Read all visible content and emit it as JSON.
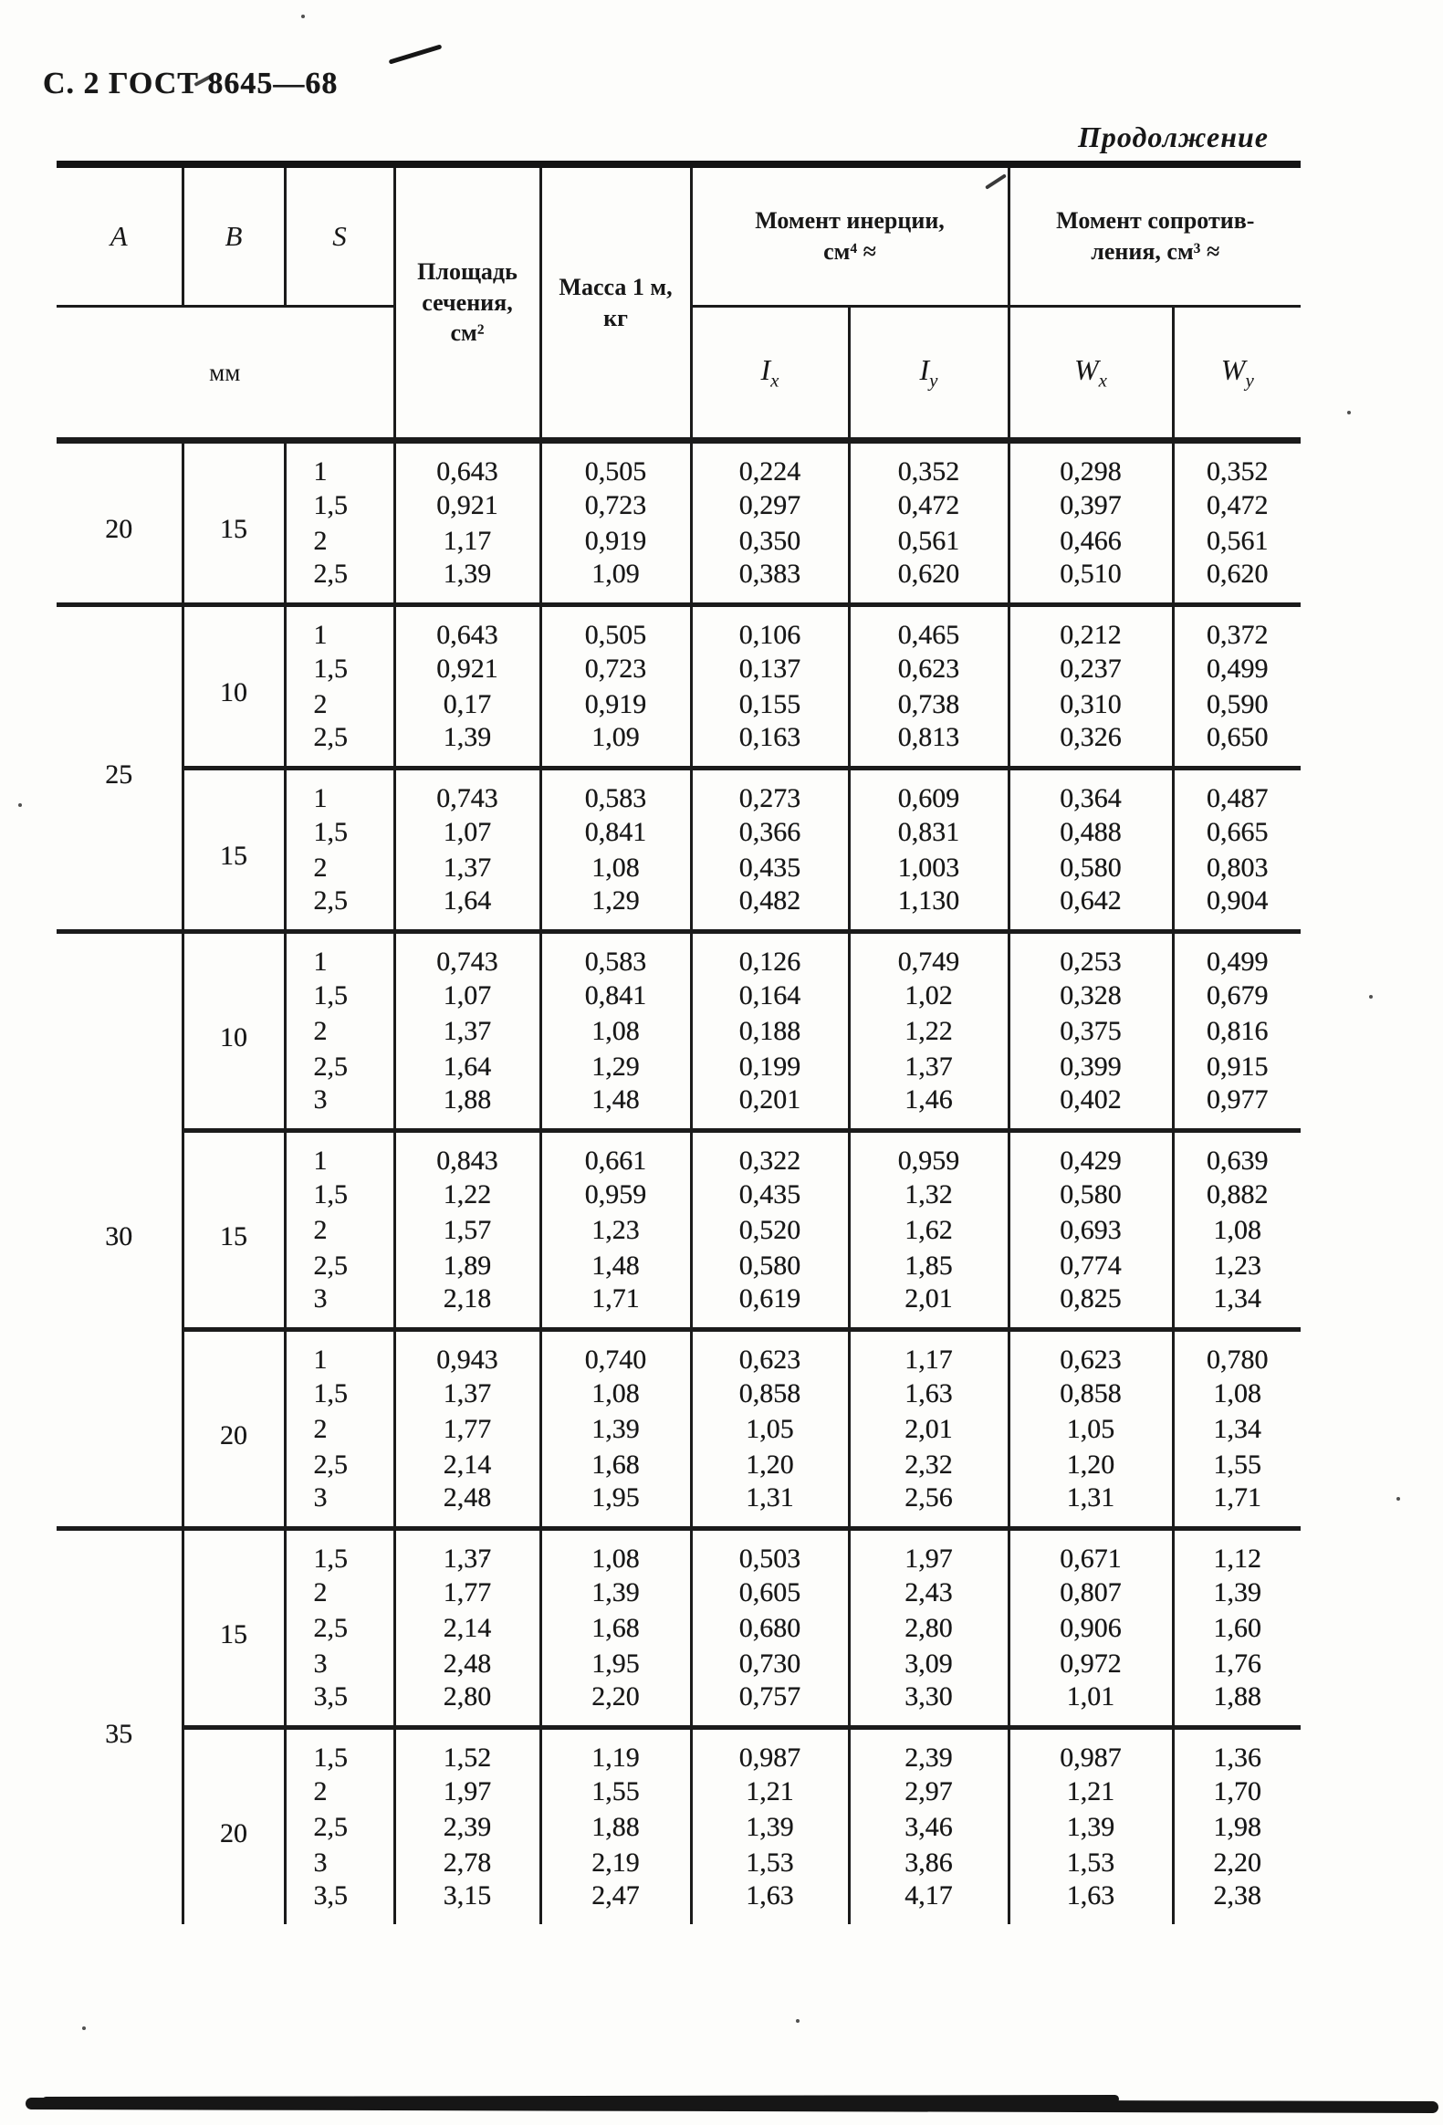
{
  "page": {
    "header": "С. 2 ГОСТ 8645—68",
    "continuation": "Продолжение"
  },
  "colors": {
    "ink": "#171717",
    "paper": "#fdfdfb"
  },
  "table": {
    "headers": {
      "a": "A",
      "b": "B",
      "s": "S",
      "mm": "мм",
      "area": "Площадь сечения, см²",
      "mass": "Масса 1 м, кг",
      "inertia_line1": "Момент инерции,",
      "inertia_line2": "см⁴ ≈",
      "resistance_line1": "Момент сопротив-",
      "resistance_line2": "ления, см³ ≈",
      "ix": {
        "base": "I",
        "sub": "x"
      },
      "iy": {
        "base": "I",
        "sub": "y"
      },
      "wx": {
        "base": "W",
        "sub": "x"
      },
      "wy": {
        "base": "W",
        "sub": "y"
      }
    },
    "groups": [
      {
        "a": "20",
        "subgroups": [
          {
            "b": "15",
            "rows": [
              [
                "1",
                "0,643",
                "0,505",
                "0,224",
                "0,352",
                "0,298",
                "0,352"
              ],
              [
                "1,5",
                "0,921",
                "0,723",
                "0,297",
                "0,472",
                "0,397",
                "0,472"
              ],
              [
                "2",
                "1,17",
                "0,919",
                "0,350",
                "0,561",
                "0,466",
                "0,561"
              ],
              [
                "2,5",
                "1,39",
                "1,09",
                "0,383",
                "0,620",
                "0,510",
                "0,620"
              ]
            ]
          }
        ]
      },
      {
        "a": "25",
        "subgroups": [
          {
            "b": "10",
            "rows": [
              [
                "1",
                "0,643",
                "0,505",
                "0,106",
                "0,465",
                "0,212",
                "0,372"
              ],
              [
                "1,5",
                "0,921",
                "0,723",
                "0,137",
                "0,623",
                "0,237",
                "0,499"
              ],
              [
                "2",
                "0,17",
                "0,919",
                "0,155",
                "0,738",
                "0,310",
                "0,590"
              ],
              [
                "2,5",
                "1,39",
                "1,09",
                "0,163",
                "0,813",
                "0,326",
                "0,650"
              ]
            ]
          },
          {
            "b": "15",
            "rows": [
              [
                "1",
                "0,743",
                "0,583",
                "0,273",
                "0,609",
                "0,364",
                "0,487"
              ],
              [
                "1,5",
                "1,07",
                "0,841",
                "0,366",
                "0,831",
                "0,488",
                "0,665"
              ],
              [
                "2",
                "1,37",
                "1,08",
                "0,435",
                "1,003",
                "0,580",
                "0,803"
              ],
              [
                "2,5",
                "1,64",
                "1,29",
                "0,482",
                "1,130",
                "0,642",
                "0,904"
              ]
            ]
          }
        ]
      },
      {
        "a": "30",
        "subgroups": [
          {
            "b": "10",
            "rows": [
              [
                "1",
                "0,743",
                "0,583",
                "0,126",
                "0,749",
                "0,253",
                "0,499"
              ],
              [
                "1,5",
                "1,07",
                "0,841",
                "0,164",
                "1,02",
                "0,328",
                "0,679"
              ],
              [
                "2",
                "1,37",
                "1,08",
                "0,188",
                "1,22",
                "0,375",
                "0,816"
              ],
              [
                "2,5",
                "1,64",
                "1,29",
                "0,199",
                "1,37",
                "0,399",
                "0,915"
              ],
              [
                "3",
                "1,88",
                "1,48",
                "0,201",
                "1,46",
                "0,402",
                "0,977"
              ]
            ]
          },
          {
            "b": "15",
            "rows": [
              [
                "1",
                "0,843",
                "0,661",
                "0,322",
                "0,959",
                "0,429",
                "0,639"
              ],
              [
                "1,5",
                "1,22",
                "0,959",
                "0,435",
                "1,32",
                "0,580",
                "0,882"
              ],
              [
                "2",
                "1,57",
                "1,23",
                "0,520",
                "1,62",
                "0,693",
                "1,08"
              ],
              [
                "2,5",
                "1,89",
                "1,48",
                "0,580",
                "1,85",
                "0,774",
                "1,23"
              ],
              [
                "3",
                "2,18",
                "1,71",
                "0,619",
                "2,01",
                "0,825",
                "1,34"
              ]
            ]
          },
          {
            "b": "20",
            "rows": [
              [
                "1",
                "0,943",
                "0,740",
                "0,623",
                "1,17",
                "0,623",
                "0,780"
              ],
              [
                "1,5",
                "1,37",
                "1,08",
                "0,858",
                "1,63",
                "0,858",
                "1,08"
              ],
              [
                "2",
                "1,77",
                "1,39",
                "1,05",
                "2,01",
                "1,05",
                "1,34"
              ],
              [
                "2,5",
                "2,14",
                "1,68",
                "1,20",
                "2,32",
                "1,20",
                "1,55"
              ],
              [
                "3",
                "2,48",
                "1,95",
                "1,31",
                "2,56",
                "1,31",
                "1,71"
              ]
            ]
          }
        ]
      },
      {
        "a": "35",
        "subgroups": [
          {
            "b": "15",
            "rows": [
              [
                "1,5",
                "1,37",
                "1,08",
                "0,503",
                "1,97",
                "0,671",
                "1,12"
              ],
              [
                "2",
                "1,77",
                "1,39",
                "0,605",
                "2,43",
                "0,807",
                "1,39"
              ],
              [
                "2,5",
                "2,14",
                "1,68",
                "0,680",
                "2,80",
                "0,906",
                "1,60"
              ],
              [
                "3",
                "2,48",
                "1,95",
                "0,730",
                "3,09",
                "0,972",
                "1,76"
              ],
              [
                "3,5",
                "2,80",
                "2,20",
                "0,757",
                "3,30",
                "1,01",
                "1,88"
              ]
            ]
          },
          {
            "b": "20",
            "rows": [
              [
                "1,5",
                "1,52",
                "1,19",
                "0,987",
                "2,39",
                "0,987",
                "1,36"
              ],
              [
                "2",
                "1,97",
                "1,55",
                "1,21",
                "2,97",
                "1,21",
                "1,70"
              ],
              [
                "2,5",
                "2,39",
                "1,88",
                "1,39",
                "3,46",
                "1,39",
                "1,98"
              ],
              [
                "3",
                "2,78",
                "2,19",
                "1,53",
                "3,86",
                "1,53",
                "2,20"
              ],
              [
                "3,5",
                "3,15",
                "2,47",
                "1,63",
                "4,17",
                "1,63",
                "2,38"
              ]
            ]
          }
        ]
      }
    ]
  }
}
